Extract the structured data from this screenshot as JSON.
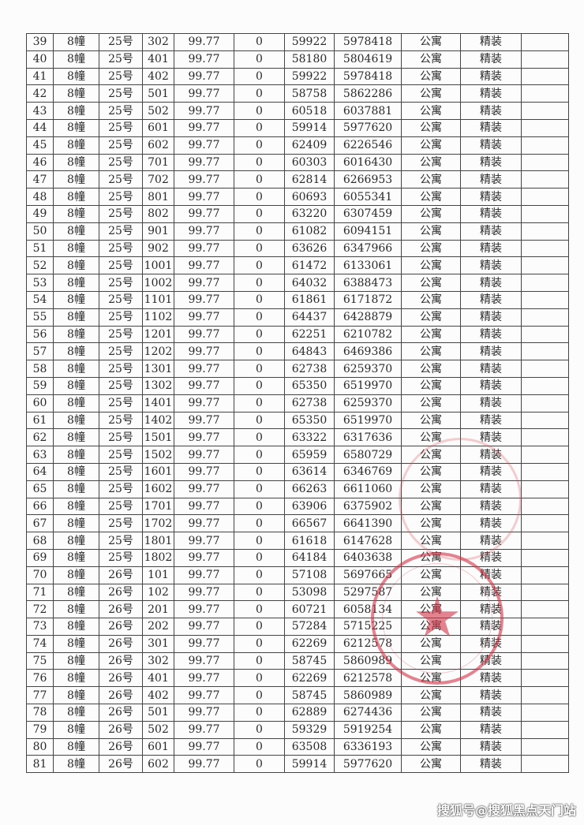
{
  "table": {
    "rows": [
      [
        "39",
        "8幢",
        "25号",
        "302",
        "99.77",
        "0",
        "59922",
        "5978418",
        "公寓",
        "精装",
        ""
      ],
      [
        "40",
        "8幢",
        "25号",
        "401",
        "99.77",
        "0",
        "58180",
        "5804619",
        "公寓",
        "精装",
        ""
      ],
      [
        "41",
        "8幢",
        "25号",
        "402",
        "99.77",
        "0",
        "59922",
        "5978418",
        "公寓",
        "精装",
        ""
      ],
      [
        "42",
        "8幢",
        "25号",
        "501",
        "99.77",
        "0",
        "58758",
        "5862286",
        "公寓",
        "精装",
        ""
      ],
      [
        "43",
        "8幢",
        "25号",
        "502",
        "99.77",
        "0",
        "60518",
        "6037881",
        "公寓",
        "精装",
        ""
      ],
      [
        "44",
        "8幢",
        "25号",
        "601",
        "99.77",
        "0",
        "59914",
        "5977620",
        "公寓",
        "精装",
        ""
      ],
      [
        "45",
        "8幢",
        "25号",
        "602",
        "99.77",
        "0",
        "62409",
        "6226546",
        "公寓",
        "精装",
        ""
      ],
      [
        "46",
        "8幢",
        "25号",
        "701",
        "99.77",
        "0",
        "60303",
        "6016430",
        "公寓",
        "精装",
        ""
      ],
      [
        "47",
        "8幢",
        "25号",
        "702",
        "99.77",
        "0",
        "62814",
        "6266953",
        "公寓",
        "精装",
        ""
      ],
      [
        "48",
        "8幢",
        "25号",
        "801",
        "99.77",
        "0",
        "60693",
        "6055341",
        "公寓",
        "精装",
        ""
      ],
      [
        "49",
        "8幢",
        "25号",
        "802",
        "99.77",
        "0",
        "63220",
        "6307459",
        "公寓",
        "精装",
        ""
      ],
      [
        "50",
        "8幢",
        "25号",
        "901",
        "99.77",
        "0",
        "61082",
        "6094151",
        "公寓",
        "精装",
        ""
      ],
      [
        "51",
        "8幢",
        "25号",
        "902",
        "99.77",
        "0",
        "63626",
        "6347966",
        "公寓",
        "精装",
        ""
      ],
      [
        "52",
        "8幢",
        "25号",
        "1001",
        "99.77",
        "0",
        "61472",
        "6133061",
        "公寓",
        "精装",
        ""
      ],
      [
        "53",
        "8幢",
        "25号",
        "1002",
        "99.77",
        "0",
        "64032",
        "6388473",
        "公寓",
        "精装",
        ""
      ],
      [
        "54",
        "8幢",
        "25号",
        "1101",
        "99.77",
        "0",
        "61861",
        "6171872",
        "公寓",
        "精装",
        ""
      ],
      [
        "55",
        "8幢",
        "25号",
        "1102",
        "99.77",
        "0",
        "64437",
        "6428879",
        "公寓",
        "精装",
        ""
      ],
      [
        "56",
        "8幢",
        "25号",
        "1201",
        "99.77",
        "0",
        "62251",
        "6210782",
        "公寓",
        "精装",
        ""
      ],
      [
        "57",
        "8幢",
        "25号",
        "1202",
        "99.77",
        "0",
        "64843",
        "6469386",
        "公寓",
        "精装",
        ""
      ],
      [
        "58",
        "8幢",
        "25号",
        "1301",
        "99.77",
        "0",
        "62738",
        "6259370",
        "公寓",
        "精装",
        ""
      ],
      [
        "59",
        "8幢",
        "25号",
        "1302",
        "99.77",
        "0",
        "65350",
        "6519970",
        "公寓",
        "精装",
        ""
      ],
      [
        "60",
        "8幢",
        "25号",
        "1401",
        "99.77",
        "0",
        "62738",
        "6259370",
        "公寓",
        "精装",
        ""
      ],
      [
        "61",
        "8幢",
        "25号",
        "1402",
        "99.77",
        "0",
        "65350",
        "6519970",
        "公寓",
        "精装",
        ""
      ],
      [
        "62",
        "8幢",
        "25号",
        "1501",
        "99.77",
        "0",
        "63322",
        "6317636",
        "公寓",
        "精装",
        ""
      ],
      [
        "63",
        "8幢",
        "25号",
        "1502",
        "99.77",
        "0",
        "65959",
        "6580729",
        "公寓",
        "精装",
        ""
      ],
      [
        "64",
        "8幢",
        "25号",
        "1601",
        "99.77",
        "0",
        "63614",
        "6346769",
        "公寓",
        "精装",
        ""
      ],
      [
        "65",
        "8幢",
        "25号",
        "1602",
        "99.77",
        "0",
        "66263",
        "6611060",
        "公寓",
        "精装",
        ""
      ],
      [
        "66",
        "8幢",
        "25号",
        "1701",
        "99.77",
        "0",
        "63906",
        "6375902",
        "公寓",
        "精装",
        ""
      ],
      [
        "67",
        "8幢",
        "25号",
        "1702",
        "99.77",
        "0",
        "66567",
        "6641390",
        "公寓",
        "精装",
        ""
      ],
      [
        "68",
        "8幢",
        "25号",
        "1801",
        "99.77",
        "0",
        "61618",
        "6147628",
        "公寓",
        "精装",
        ""
      ],
      [
        "69",
        "8幢",
        "25号",
        "1802",
        "99.77",
        "0",
        "64184",
        "6403638",
        "公寓",
        "精装",
        ""
      ],
      [
        "70",
        "8幢",
        "26号",
        "101",
        "99.77",
        "0",
        "57108",
        "5697665",
        "公寓",
        "精装",
        ""
      ],
      [
        "71",
        "8幢",
        "26号",
        "102",
        "99.77",
        "0",
        "53098",
        "5297587",
        "公寓",
        "精装",
        ""
      ],
      [
        "72",
        "8幢",
        "26号",
        "201",
        "99.77",
        "0",
        "60721",
        "6058134",
        "公寓",
        "精装",
        ""
      ],
      [
        "73",
        "8幢",
        "26号",
        "202",
        "99.77",
        "0",
        "57284",
        "5715225",
        "公寓",
        "精装",
        ""
      ],
      [
        "74",
        "8幢",
        "26号",
        "301",
        "99.77",
        "0",
        "62269",
        "6212578",
        "公寓",
        "精装",
        ""
      ],
      [
        "75",
        "8幢",
        "26号",
        "302",
        "99.77",
        "0",
        "58745",
        "5860989",
        "公寓",
        "精装",
        ""
      ],
      [
        "76",
        "8幢",
        "26号",
        "401",
        "99.77",
        "0",
        "62269",
        "6212578",
        "公寓",
        "精装",
        ""
      ],
      [
        "77",
        "8幢",
        "26号",
        "402",
        "99.77",
        "0",
        "58745",
        "5860989",
        "公寓",
        "精装",
        ""
      ],
      [
        "78",
        "8幢",
        "26号",
        "501",
        "99.77",
        "0",
        "62889",
        "6274436",
        "公寓",
        "精装",
        ""
      ],
      [
        "79",
        "8幢",
        "26号",
        "502",
        "99.77",
        "0",
        "59329",
        "5919254",
        "公寓",
        "精装",
        ""
      ],
      [
        "80",
        "8幢",
        "26号",
        "601",
        "99.77",
        "0",
        "63508",
        "6336193",
        "公寓",
        "精装",
        ""
      ],
      [
        "81",
        "8幢",
        "26号",
        "602",
        "99.77",
        "0",
        "59914",
        "5977620",
        "公寓",
        "精装",
        ""
      ]
    ]
  },
  "stamp": {
    "color": "#d23246",
    "icon": "star-icon"
  },
  "watermark": "搜狐号@搜狐黑点天门站"
}
